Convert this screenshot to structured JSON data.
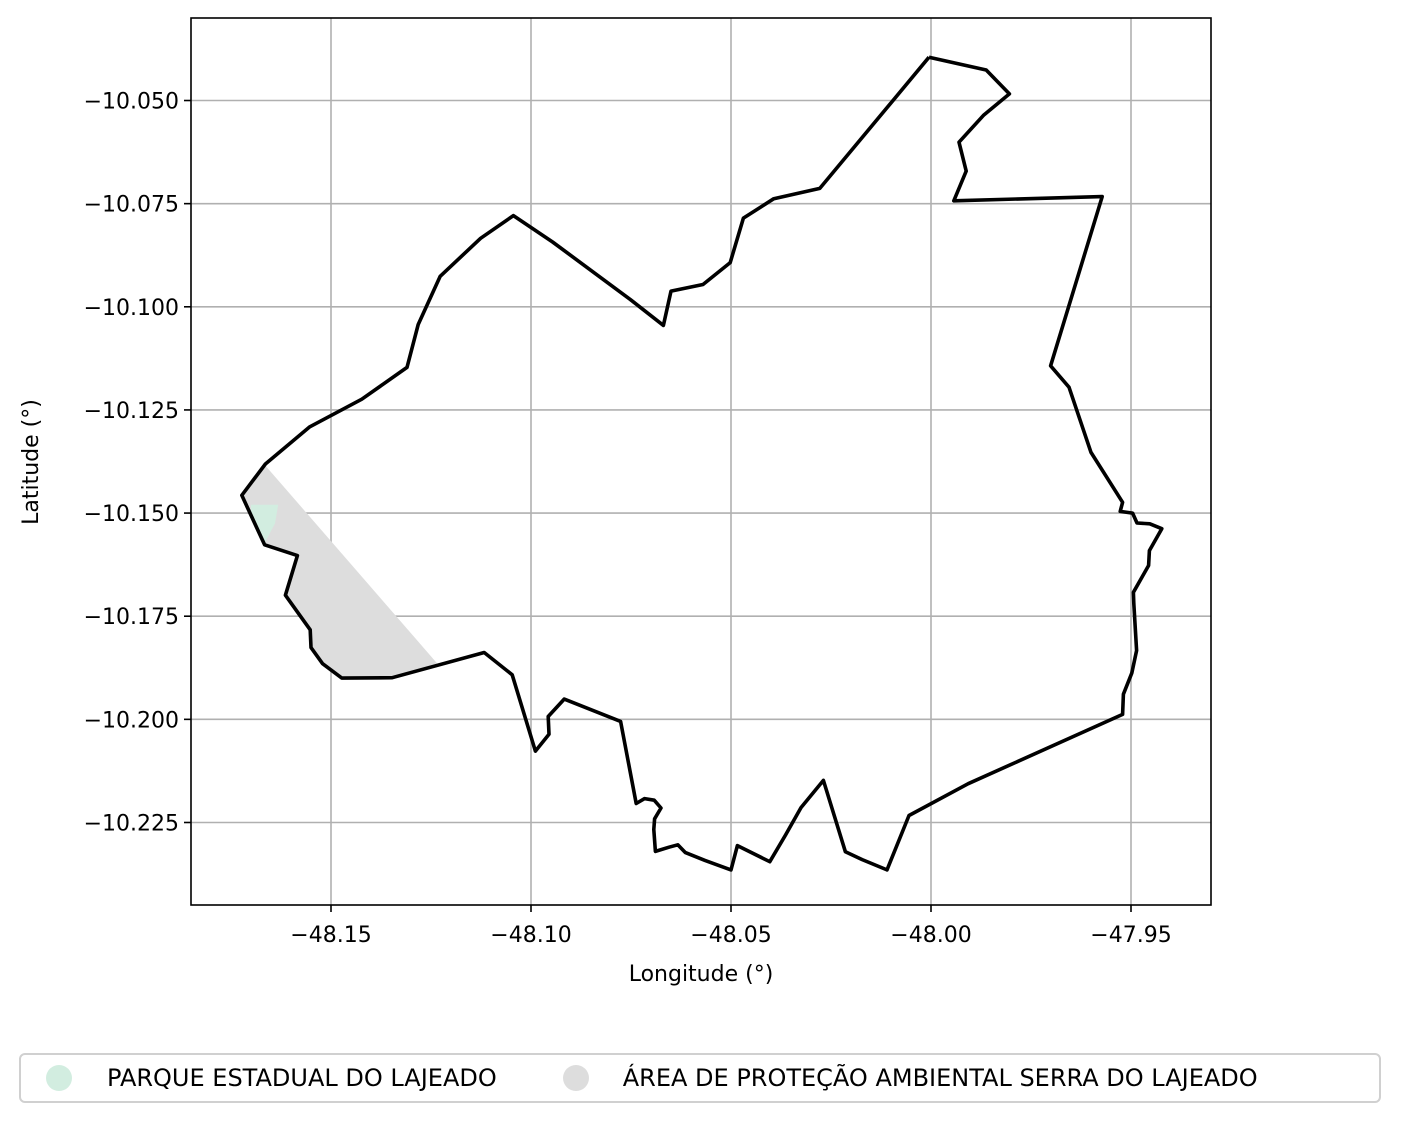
{
  "chart_data": {
    "type": "map",
    "xlabel": "Longitude (°)",
    "ylabel": "Latitude (°)",
    "xlim": [
      -48.185,
      -47.93
    ],
    "ylim": [
      -10.245,
      -10.03
    ],
    "xticks": [
      -48.15,
      -48.1,
      -48.05,
      -48.0,
      -47.95
    ],
    "xtick_labels": [
      "−48.15",
      "−48.10",
      "−48.05",
      "−48.00",
      "−47.95"
    ],
    "yticks": [
      -10.05,
      -10.075,
      -10.1,
      -10.125,
      -10.15,
      -10.175,
      -10.2,
      -10.225
    ],
    "ytick_labels": [
      "−10.050",
      "−10.075",
      "−10.100",
      "−10.125",
      "−10.150",
      "−10.175",
      "−10.200",
      "−10.225"
    ],
    "grid": true,
    "legend_position": "bottom",
    "boundary": {
      "color": "#000000",
      "coords": [
        [
          -48.0005,
          -10.0395
        ],
        [
          -47.9862,
          -10.0426
        ],
        [
          -47.9804,
          -10.0484
        ],
        [
          -47.9869,
          -10.0536
        ],
        [
          -47.993,
          -10.0601
        ],
        [
          -47.9912,
          -10.0671
        ],
        [
          -47.9943,
          -10.0743
        ],
        [
          -47.9572,
          -10.0733
        ],
        [
          -47.9701,
          -10.1143
        ],
        [
          -47.9655,
          -10.1195
        ],
        [
          -47.96,
          -10.1353
        ],
        [
          -47.9521,
          -10.1474
        ],
        [
          -47.9527,
          -10.1496
        ],
        [
          -47.9496,
          -10.15
        ],
        [
          -47.9485,
          -10.1524
        ],
        [
          -47.9453,
          -10.1526
        ],
        [
          -47.9423,
          -10.1538
        ],
        [
          -47.9454,
          -10.1591
        ],
        [
          -47.9456,
          -10.1627
        ],
        [
          -47.9494,
          -10.1692
        ],
        [
          -47.9493,
          -10.1719
        ],
        [
          -47.9486,
          -10.1833
        ],
        [
          -47.9498,
          -10.1888
        ],
        [
          -47.9519,
          -10.1939
        ],
        [
          -47.9521,
          -10.1988
        ],
        [
          -47.9907,
          -10.2156
        ],
        [
          -48.0055,
          -10.2233
        ],
        [
          -48.011,
          -10.2365
        ],
        [
          -48.0172,
          -10.234
        ],
        [
          -48.0214,
          -10.2321
        ],
        [
          -48.0269,
          -10.2148
        ],
        [
          -48.0325,
          -10.2214
        ],
        [
          -48.0364,
          -10.2281
        ],
        [
          -48.0403,
          -10.2345
        ],
        [
          -48.0484,
          -10.2306
        ],
        [
          -48.05,
          -10.2365
        ],
        [
          -48.0565,
          -10.2342
        ],
        [
          -48.0614,
          -10.2323
        ],
        [
          -48.0633,
          -10.2304
        ],
        [
          -48.0655,
          -10.231
        ],
        [
          -48.0689,
          -10.232
        ],
        [
          -48.0693,
          -10.2267
        ],
        [
          -48.0691,
          -10.2241
        ],
        [
          -48.0675,
          -10.2215
        ],
        [
          -48.0692,
          -10.2196
        ],
        [
          -48.0716,
          -10.2192
        ],
        [
          -48.0737,
          -10.2204
        ],
        [
          -48.0776,
          -10.2005
        ],
        [
          -48.0917,
          -10.1951
        ],
        [
          -48.0957,
          -10.1993
        ],
        [
          -48.0955,
          -10.2036
        ],
        [
          -48.0989,
          -10.2077
        ],
        [
          -48.1047,
          -10.1892
        ],
        [
          -48.1117,
          -10.1838
        ],
        [
          -48.1347,
          -10.1899
        ],
        [
          -48.1473,
          -10.19
        ],
        [
          -48.1521,
          -10.1865
        ],
        [
          -48.155,
          -10.1826
        ],
        [
          -48.1552,
          -10.1783
        ],
        [
          -48.1614,
          -10.1699
        ],
        [
          -48.1584,
          -10.1603
        ],
        [
          -48.1666,
          -10.1577
        ],
        [
          -48.1723,
          -10.1457
        ],
        [
          -48.1664,
          -10.1381
        ],
        [
          -48.1553,
          -10.1291
        ],
        [
          -48.1423,
          -10.1224
        ],
        [
          -48.131,
          -10.1147
        ],
        [
          -48.1282,
          -10.1043
        ],
        [
          -48.1227,
          -10.0926
        ],
        [
          -48.1126,
          -10.0834
        ],
        [
          -48.1044,
          -10.0779
        ],
        [
          -48.0946,
          -10.0843
        ],
        [
          -48.0752,
          -10.0982
        ],
        [
          -48.0669,
          -10.1045
        ],
        [
          -48.065,
          -10.0962
        ],
        [
          -48.057,
          -10.0946
        ],
        [
          -48.0502,
          -10.0893
        ],
        [
          -48.0469,
          -10.0785
        ],
        [
          -48.0393,
          -10.0738
        ],
        [
          -48.0278,
          -10.0713
        ],
        [
          -48.0005,
          -10.0395
        ]
      ]
    },
    "areas": [
      {
        "name": "ÁREA DE PROTEÇÃO AMBIENTAL SERRA DO LAJEADO",
        "color": "#dddddd",
        "coords": [
          [
            -48.1664,
            -10.1385
          ],
          [
            -48.1235,
            -10.1864
          ],
          [
            -48.1347,
            -10.1899
          ],
          [
            -48.1473,
            -10.19
          ],
          [
            -48.1521,
            -10.1865
          ],
          [
            -48.155,
            -10.1826
          ],
          [
            -48.1552,
            -10.1783
          ],
          [
            -48.1614,
            -10.1699
          ],
          [
            -48.1584,
            -10.1603
          ],
          [
            -48.1666,
            -10.1577
          ],
          [
            -48.1723,
            -10.1457
          ],
          [
            -48.1664,
            -10.1385
          ]
        ]
      },
      {
        "name": "PARQUE ESTADUAL DO LAJEADO",
        "color": "#d2ede0",
        "coords": [
          [
            -48.17,
            -10.148
          ],
          [
            -48.1632,
            -10.148
          ],
          [
            -48.164,
            -10.1525
          ],
          [
            -48.1667,
            -10.1575
          ],
          [
            -48.17,
            -10.15
          ],
          [
            -48.17,
            -10.148
          ]
        ]
      }
    ]
  },
  "legend": {
    "items": [
      {
        "label": "PARQUE ESTADUAL DO LAJEADO",
        "color": "#d2ede0"
      },
      {
        "label": "ÁREA DE PROTEÇÃO AMBIENTAL SERRA DO LAJEADO",
        "color": "#dddddd"
      }
    ]
  }
}
